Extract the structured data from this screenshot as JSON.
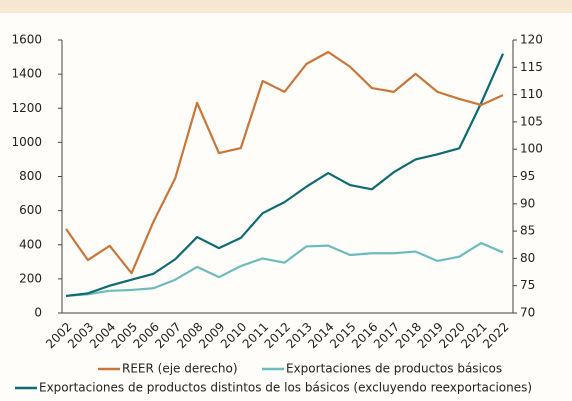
{
  "chart_data": {
    "type": "line",
    "categories": [
      "2002",
      "2003",
      "2004",
      "2005",
      "2006",
      "2007",
      "2008",
      "2009",
      "2010",
      "2011",
      "2012",
      "2013",
      "2014",
      "2015",
      "2016",
      "2017",
      "2018",
      "2019",
      "2020",
      "2021",
      "2022"
    ],
    "series": [
      {
        "name": "REER (eje derecho)",
        "color": "#c8763a",
        "axis": "y2",
        "values": [
          85.4,
          79.7,
          82.3,
          77.3,
          86.7,
          94.7,
          108.5,
          99.3,
          100.2,
          112.5,
          110.5,
          115.6,
          117.8,
          115.1,
          111.2,
          110.5,
          113.8,
          110.5,
          109.2,
          108.1,
          109.9
        ]
      },
      {
        "name": "Exportaciones de productos básicos",
        "color": "#6cbcbc",
        "values": [
          100,
          110,
          130,
          135,
          145,
          195,
          270,
          210,
          275,
          320,
          295,
          390,
          395,
          340,
          350,
          350,
          360,
          305,
          330,
          410,
          355
        ]
      },
      {
        "name": "Exportaciones de productos distintos de los básicos (excluyendo reexportaciones)",
        "color": "#0e6b72",
        "values": [
          100,
          115,
          160,
          195,
          230,
          315,
          445,
          380,
          440,
          585,
          650,
          740,
          820,
          750,
          725,
          825,
          900,
          930,
          965,
          1230,
          1520
        ]
      }
    ],
    "ylim": [
      0,
      1600
    ],
    "yticks": [
      0,
      200,
      400,
      600,
      800,
      1000,
      1200,
      1400,
      1600
    ],
    "y2lim": [
      70,
      120
    ],
    "y2ticks": [
      70,
      75,
      80,
      85,
      90,
      95,
      100,
      105,
      110,
      115,
      120
    ],
    "grid": false
  }
}
